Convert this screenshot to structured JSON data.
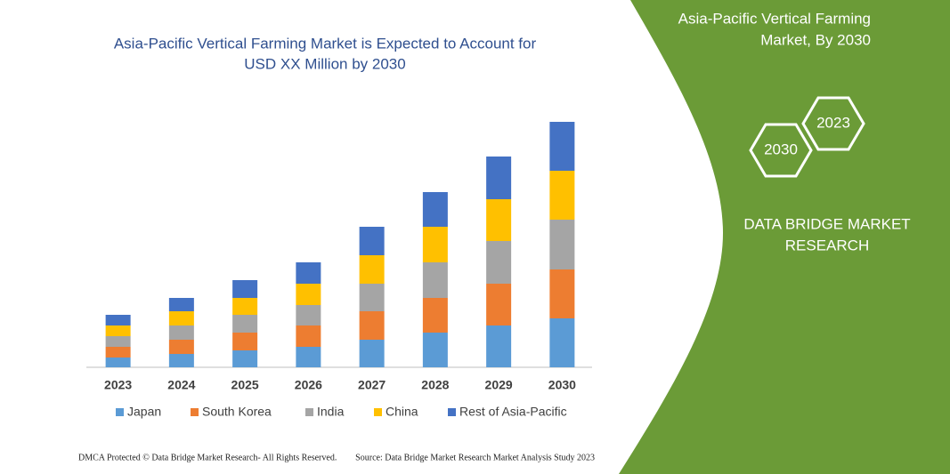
{
  "chart_data": {
    "type": "stacked-bar",
    "title": [
      "Asia-Pacific Vertical Farming Market is Expected to Account for",
      "USD XX Million by 2030"
    ],
    "categories": [
      "2023",
      "2024",
      "2025",
      "2026",
      "2027",
      "2028",
      "2029",
      "2030"
    ],
    "series": [
      {
        "name": "Japan",
        "color": "#5b9bd5",
        "values": [
          11,
          15,
          19,
          23,
          31,
          39,
          47,
          55
        ]
      },
      {
        "name": "South Korea",
        "color": "#ed7d31",
        "values": [
          12,
          16,
          20,
          24,
          32,
          39,
          47,
          55
        ]
      },
      {
        "name": "India",
        "color": "#a5a5a5",
        "values": [
          12,
          16,
          20,
          23,
          31,
          40,
          48,
          56
        ]
      },
      {
        "name": "China",
        "color": "#ffc000",
        "values": [
          12,
          16,
          19,
          24,
          32,
          40,
          47,
          55
        ]
      },
      {
        "name": "Rest of Asia-Pacific",
        "color": "#4472c4",
        "values": [
          12,
          15,
          20,
          24,
          32,
          39,
          48,
          55
        ]
      }
    ],
    "ylim": [
      0,
      280
    ],
    "grid": false,
    "legend": "bottom"
  },
  "panel": {
    "heading": [
      "Asia-Pacific Vertical Farming",
      "Market, By 2030"
    ],
    "hex_front": "2030",
    "hex_back": "2023",
    "brand": [
      "DATA BRIDGE MARKET",
      "RESEARCH"
    ]
  },
  "footer": {
    "left": "DMCA Protected © Data Bridge Market Research-  All Rights Reserved.",
    "right": "Source: Data Bridge Market Research  Market Analysis Study 2023"
  }
}
